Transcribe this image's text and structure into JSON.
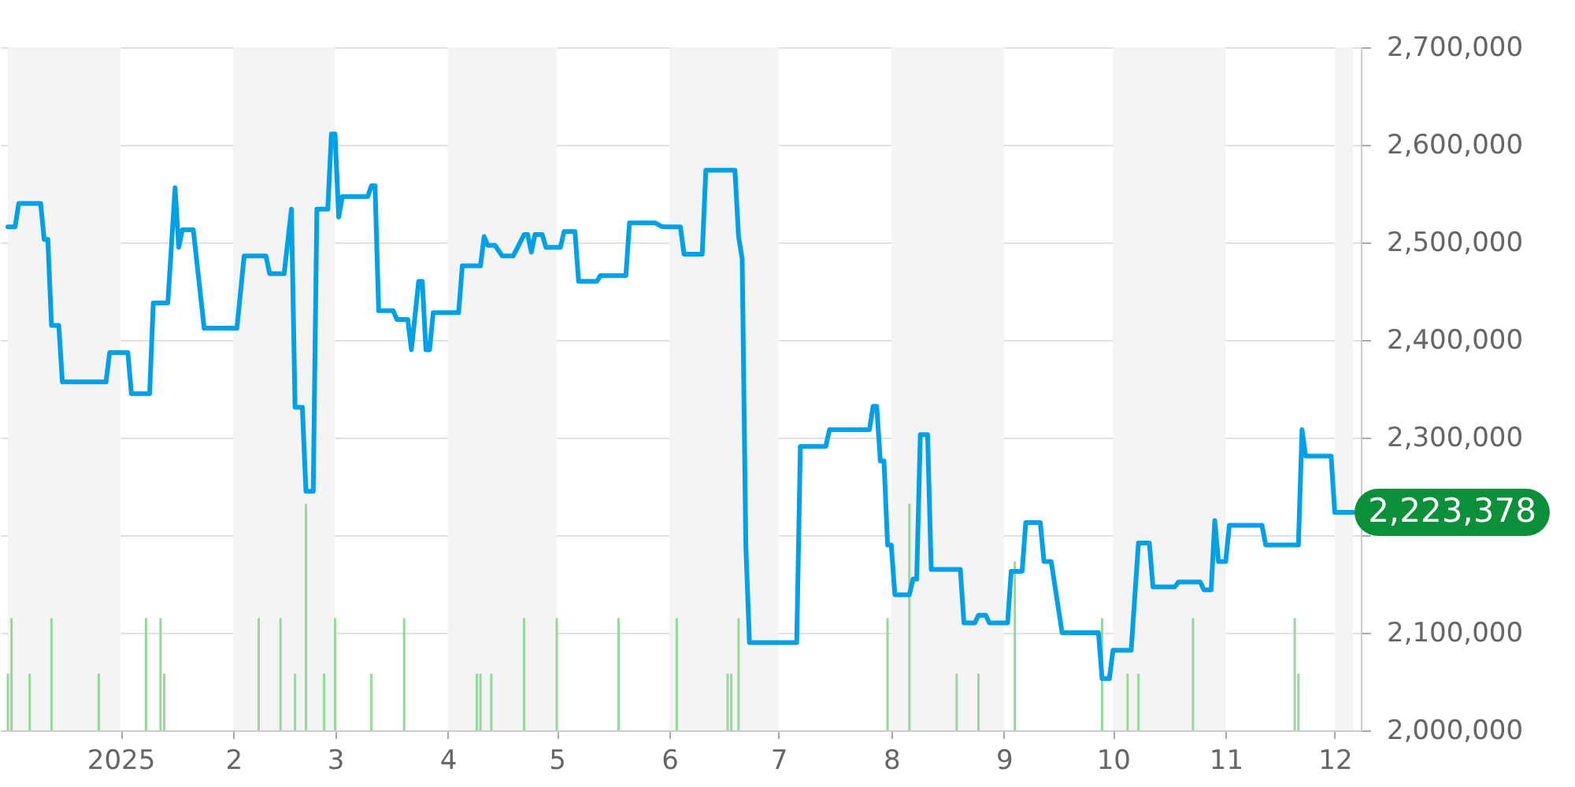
{
  "chart_data": {
    "type": "line",
    "xlim": [
      "2024-12-01",
      "2025-12-06"
    ],
    "ylim": [
      2000000,
      2700000
    ],
    "xticks": [
      {
        "value": "2025-01-01",
        "label": "2025"
      },
      {
        "value": "2025-02-01",
        "label": "2"
      },
      {
        "value": "2025-03-01",
        "label": "3"
      },
      {
        "value": "2025-04-01",
        "label": "4"
      },
      {
        "value": "2025-05-01",
        "label": "5"
      },
      {
        "value": "2025-06-01",
        "label": "6"
      },
      {
        "value": "2025-07-01",
        "label": "7"
      },
      {
        "value": "2025-08-01",
        "label": "8"
      },
      {
        "value": "2025-09-01",
        "label": "9"
      },
      {
        "value": "2025-10-01",
        "label": "10"
      },
      {
        "value": "2025-11-01",
        "label": "11"
      },
      {
        "value": "2025-12-01",
        "label": "12"
      }
    ],
    "yticks": [
      {
        "value": 2000000,
        "label": "2,000,000"
      },
      {
        "value": 2100000,
        "label": "2,100,000"
      },
      {
        "value": 2200000,
        "label": null
      },
      {
        "value": 2300000,
        "label": "2,300,000"
      },
      {
        "value": 2400000,
        "label": "2,400,000"
      },
      {
        "value": 2500000,
        "label": "2,500,000"
      },
      {
        "value": 2600000,
        "label": "2,600,000"
      },
      {
        "value": 2700000,
        "label": "2,700,000"
      }
    ],
    "grid": "y",
    "bands": [
      {
        "axis": "x",
        "from": "2024-12-01",
        "to": "2025-01-01",
        "color": "#f4f4f4"
      },
      {
        "axis": "x",
        "from": "2025-02-01",
        "to": "2025-03-01",
        "color": "#f4f4f4"
      },
      {
        "axis": "x",
        "from": "2025-04-01",
        "to": "2025-05-01",
        "color": "#f4f4f4"
      },
      {
        "axis": "x",
        "from": "2025-06-01",
        "to": "2025-07-01",
        "color": "#f4f4f4"
      },
      {
        "axis": "x",
        "from": "2025-08-01",
        "to": "2025-09-01",
        "color": "#f4f4f4"
      },
      {
        "axis": "x",
        "from": "2025-10-01",
        "to": "2025-11-01",
        "color": "#f4f4f4"
      },
      {
        "axis": "x",
        "from": "2025-12-01",
        "to": "2025-12-06",
        "color": "#f4f4f4"
      }
    ],
    "annotations": [
      {
        "text": "2,223,378",
        "x": "2025-12-06",
        "y": 2223378
      }
    ],
    "series": [
      {
        "type": "bar",
        "color": "#94d99a",
        "x": [
          "2024-12-01",
          "2024-12-02",
          "2024-12-07",
          "2024-12-13",
          "2024-12-26",
          "2025-01-08",
          "2025-01-12",
          "2025-01-13",
          "2025-02-08",
          "2025-02-14",
          "2025-02-18",
          "2025-02-21",
          "2025-02-26",
          "2025-03-01",
          "2025-03-11",
          "2025-03-20",
          "2025-04-09",
          "2025-04-10",
          "2025-04-13",
          "2025-04-22",
          "2025-05-01",
          "2025-05-18",
          "2025-06-03",
          "2025-06-17",
          "2025-06-18",
          "2025-06-20",
          "2025-07-31",
          "2025-08-06",
          "2025-08-19",
          "2025-08-25",
          "2025-09-04",
          "2025-09-28",
          "2025-10-05",
          "2025-10-08",
          "2025-10-23",
          "2025-11-20",
          "2025-11-21"
        ],
        "values": [
          2058000,
          2115000,
          2058000,
          2115000,
          2058000,
          2115000,
          2115000,
          2058000,
          2115000,
          2115000,
          2058000,
          2232000,
          2058000,
          2115000,
          2058000,
          2115000,
          2058000,
          2058000,
          2058000,
          2115000,
          2115000,
          2115000,
          2115000,
          2058000,
          2058000,
          2115000,
          2115000,
          2232000,
          2058000,
          2058000,
          2173000,
          2115000,
          2058000,
          2058000,
          2115000,
          2115000,
          2058000
        ]
      },
      {
        "color": "#00a0e6",
        "x": [
          "2024-12-01",
          "2024-12-03",
          "2024-12-04",
          "2024-12-10",
          "2024-12-11",
          "2024-12-12",
          "2024-12-13",
          "2024-12-15",
          "2024-12-16",
          "2024-12-28",
          "2024-12-29",
          "2025-01-03",
          "2025-01-04",
          "2025-01-09",
          "2025-01-10",
          "2025-01-14",
          "2025-01-16",
          "2025-01-17",
          "2025-01-18",
          "2025-01-21",
          "2025-01-24",
          "2025-02-02",
          "2025-02-04",
          "2025-02-10",
          "2025-02-11",
          "2025-02-15",
          "2025-02-17",
          "2025-02-18",
          "2025-02-20",
          "2025-02-21",
          "2025-02-23",
          "2025-02-24",
          "2025-02-27",
          "2025-02-28",
          "2025-03-01",
          "2025-03-02",
          "2025-03-03",
          "2025-03-10",
          "2025-03-11",
          "2025-03-12",
          "2025-03-13",
          "2025-03-17",
          "2025-03-18",
          "2025-03-21",
          "2025-03-22",
          "2025-03-24",
          "2025-03-25",
          "2025-03-26",
          "2025-03-27",
          "2025-03-28",
          "2025-04-04",
          "2025-04-05",
          "2025-04-10",
          "2025-04-11",
          "2025-04-12",
          "2025-04-14",
          "2025-04-16",
          "2025-04-19",
          "2025-04-22",
          "2025-04-23",
          "2025-04-24",
          "2025-04-25",
          "2025-04-27",
          "2025-04-28",
          "2025-05-02",
          "2025-05-03",
          "2025-05-06",
          "2025-05-07",
          "2025-05-12",
          "2025-05-13",
          "2025-05-20",
          "2025-05-21",
          "2025-05-28",
          "2025-05-30",
          "2025-06-04",
          "2025-06-05",
          "2025-06-10",
          "2025-06-11",
          "2025-06-19",
          "2025-06-20",
          "2025-06-21",
          "2025-06-22",
          "2025-06-23",
          "2025-07-06",
          "2025-07-07",
          "2025-07-14",
          "2025-07-15",
          "2025-07-26",
          "2025-07-27",
          "2025-07-28",
          "2025-07-29",
          "2025-07-30",
          "2025-07-31",
          "2025-08-01",
          "2025-08-02",
          "2025-08-06",
          "2025-08-07",
          "2025-08-08",
          "2025-08-09",
          "2025-08-11",
          "2025-08-12",
          "2025-08-20",
          "2025-08-21",
          "2025-08-24",
          "2025-08-25",
          "2025-08-27",
          "2025-08-28",
          "2025-09-02",
          "2025-09-03",
          "2025-09-06",
          "2025-09-07",
          "2025-09-11",
          "2025-09-12",
          "2025-09-14",
          "2025-09-17",
          "2025-09-27",
          "2025-09-28",
          "2025-09-30",
          "2025-10-01",
          "2025-10-06",
          "2025-10-08",
          "2025-10-11",
          "2025-10-12",
          "2025-10-18",
          "2025-10-19",
          "2025-10-25",
          "2025-10-26",
          "2025-10-28",
          "2025-10-29",
          "2025-10-30",
          "2025-11-01",
          "2025-11-02",
          "2025-11-11",
          "2025-11-12",
          "2025-11-21",
          "2025-11-22",
          "2025-11-23",
          "2025-11-30",
          "2025-12-01",
          "2025-12-06"
        ],
        "values": [
          2516000,
          2516000,
          2540000,
          2540000,
          2503000,
          2503000,
          2415000,
          2415000,
          2357000,
          2357000,
          2387000,
          2387000,
          2345000,
          2345000,
          2438000,
          2438000,
          2556000,
          2495000,
          2513000,
          2513000,
          2412000,
          2412000,
          2486000,
          2486000,
          2468000,
          2468000,
          2534000,
          2331000,
          2331000,
          2245000,
          2245000,
          2534000,
          2534000,
          2611000,
          2611000,
          2526000,
          2547000,
          2547000,
          2558000,
          2558000,
          2430000,
          2430000,
          2421000,
          2421000,
          2390000,
          2460000,
          2460000,
          2390000,
          2390000,
          2428000,
          2428000,
          2476000,
          2476000,
          2506000,
          2497000,
          2497000,
          2486000,
          2486000,
          2508000,
          2508000,
          2490000,
          2508000,
          2508000,
          2495000,
          2495000,
          2511000,
          2511000,
          2460000,
          2460000,
          2466000,
          2466000,
          2520000,
          2520000,
          2516000,
          2516000,
          2488000,
          2488000,
          2574000,
          2574000,
          2506000,
          2483000,
          2189000,
          2090000,
          2090000,
          2291000,
          2291000,
          2308000,
          2308000,
          2332000,
          2332000,
          2276000,
          2276000,
          2190000,
          2190000,
          2139000,
          2139000,
          2155000,
          2155000,
          2303000,
          2303000,
          2165000,
          2165000,
          2110000,
          2110000,
          2118000,
          2118000,
          2110000,
          2110000,
          2163000,
          2163000,
          2213000,
          2213000,
          2173000,
          2173000,
          2100000,
          2100000,
          2053000,
          2053000,
          2082000,
          2082000,
          2192000,
          2192000,
          2147000,
          2147000,
          2152000,
          2152000,
          2144000,
          2144000,
          2215000,
          2173000,
          2173000,
          2210000,
          2210000,
          2190000,
          2190000,
          2308000,
          2281000,
          2281000,
          2223378,
          2223378
        ]
      }
    ]
  }
}
